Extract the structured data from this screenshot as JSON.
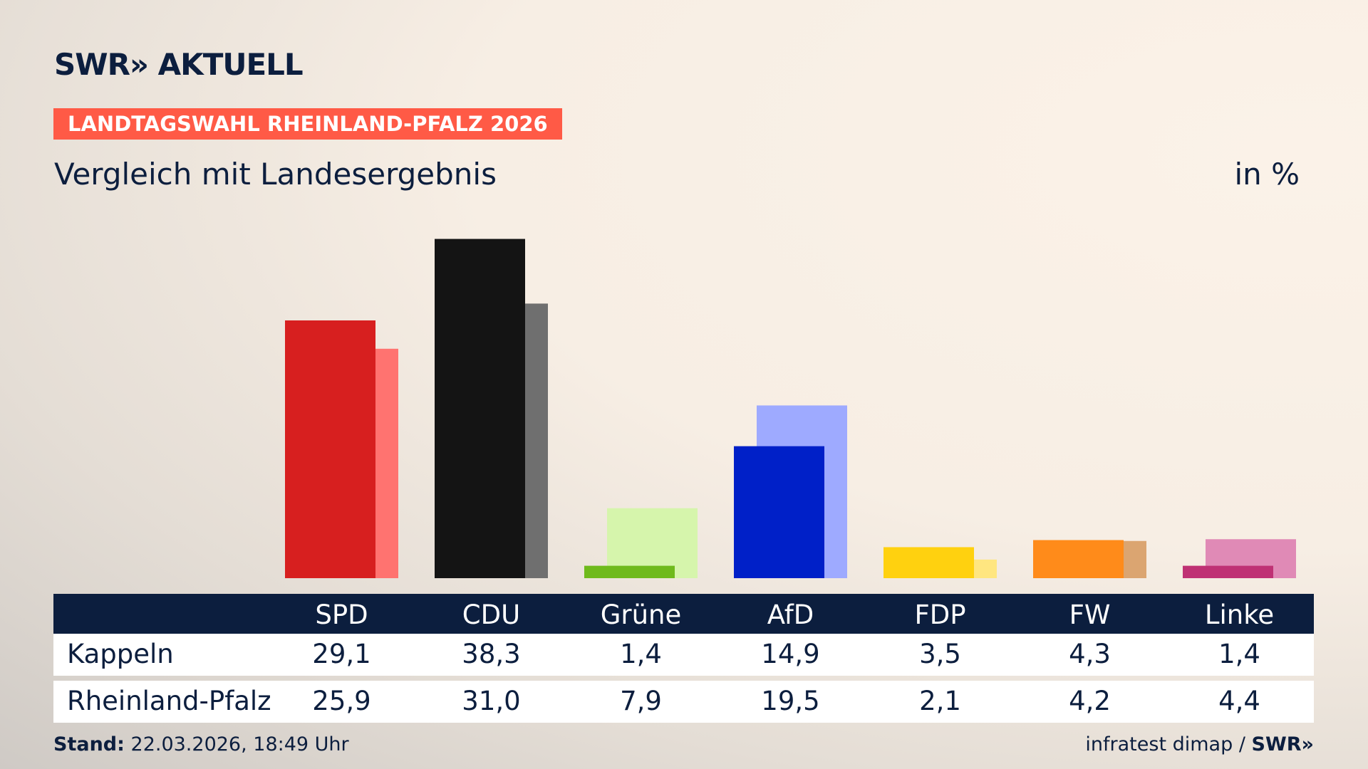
{
  "header": {
    "logo": "SWR» AKTUELL",
    "badge": "LANDTAGSWAHL RHEINLAND-PFALZ 2026",
    "subtitle": "Vergleich mit Landesergebnis",
    "unit": "in %"
  },
  "chart_data": {
    "type": "bar",
    "categories": [
      "SPD",
      "CDU",
      "Grüne",
      "AfD",
      "FDP",
      "FW",
      "Linke"
    ],
    "series": [
      {
        "name": "Kappeln",
        "colors": [
          "#d71f1f",
          "#141414",
          "#6fba1c",
          "#0020c8",
          "#ffd10f",
          "#ff8b1a",
          "#bf3174"
        ],
        "values": [
          29.1,
          38.3,
          1.4,
          14.9,
          3.5,
          4.3,
          1.4
        ],
        "value_labels": [
          "29,1",
          "38,3",
          "1,4",
          "14,9",
          "3,5",
          "4,3",
          "1,4"
        ]
      },
      {
        "name": "Rheinland-Pfalz",
        "colors": [
          "#ff7370",
          "#6f6f6f",
          "#d6f5ac",
          "#9eaaff",
          "#ffe680",
          "#dba571",
          "#e08ab6"
        ],
        "values": [
          25.9,
          31.0,
          7.9,
          19.5,
          2.1,
          4.2,
          4.4
        ],
        "value_labels": [
          "25,9",
          "31,0",
          "7,9",
          "19,5",
          "2,1",
          "4,2",
          "4,4"
        ]
      }
    ]
  },
  "footer": {
    "stand_label": "Stand:",
    "stand": "22.03.2026, 18:49 Uhr",
    "source": "infratest dimap /",
    "source_logo": "SWR»"
  }
}
